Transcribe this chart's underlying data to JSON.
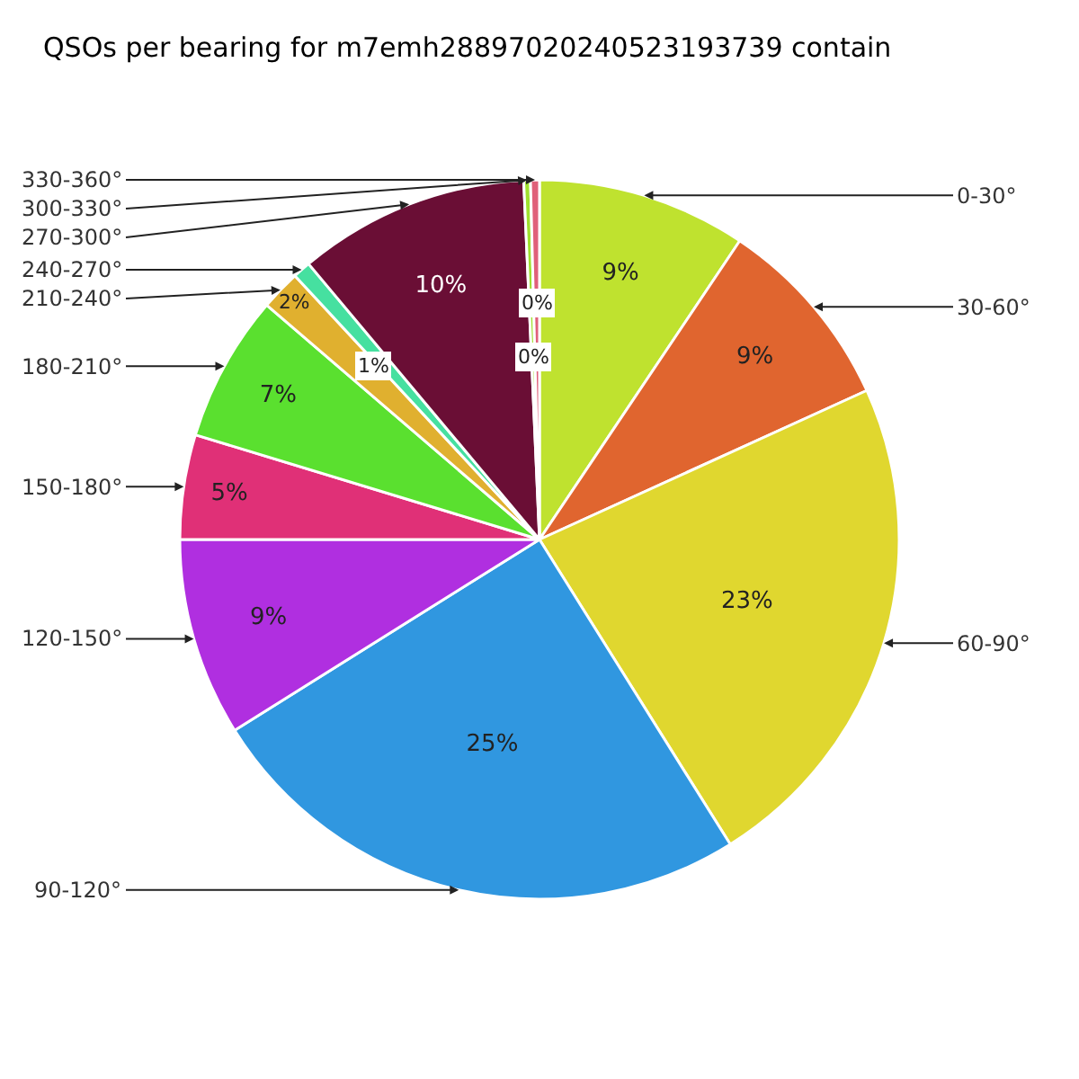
{
  "chart_data": {
    "type": "pie",
    "title": "QSOs per bearing for m7emh28897020240523193739 contain",
    "categories": [
      "0-30°",
      "30-60°",
      "60-90°",
      "90-120°",
      "120-150°",
      "150-180°",
      "180-210°",
      "210-240°",
      "240-270°",
      "270-300°",
      "300-330°",
      "330-360°"
    ],
    "values": [
      9.4,
      8.8,
      22.9,
      25.0,
      8.9,
      4.7,
      6.6,
      1.8,
      0.8,
      10.4,
      0.3,
      0.4
    ],
    "value_labels": [
      "9%",
      "9%",
      "23%",
      "25%",
      "9%",
      "5%",
      "7%",
      "2%",
      "1%",
      "10%",
      "0%",
      "0%"
    ],
    "colors": [
      "#bfe22f",
      "#e0652f",
      "#e0d72f",
      "#3097e0",
      "#b02fe0",
      "#e03077",
      "#5ae02f",
      "#e0b02f",
      "#46e0a0",
      "#6a0e35",
      "#a0e02f",
      "#e0607a"
    ],
    "legend": false
  }
}
